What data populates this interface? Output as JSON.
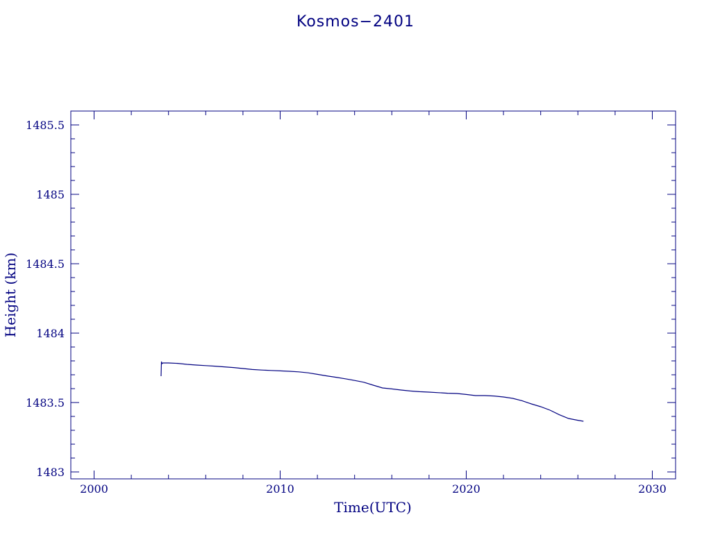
{
  "chart_data": {
    "type": "line",
    "title": "Kosmos−2401",
    "xlabel": "Time(UTC)",
    "ylabel": "Height (km)",
    "xlim": [
      1998.75,
      2031.25
    ],
    "ylim": [
      1482.95,
      1485.6
    ],
    "x_ticks": [
      2000,
      2010,
      2020,
      2030
    ],
    "x_tick_labels": [
      "2000",
      "2010",
      "2020",
      "2030"
    ],
    "y_ticks": [
      1483,
      1483.5,
      1484,
      1484.5,
      1485,
      1485.5
    ],
    "y_tick_labels": [
      "1483",
      "1483.5",
      "1484",
      "1484.5",
      "1485",
      "1485.5"
    ],
    "grid": false,
    "colors": {
      "axis": "#000080",
      "line": "#000080"
    },
    "series": [
      {
        "x": [
          2003.6,
          2003.62,
          2003.65,
          2003.7,
          2004.0,
          2004.5,
          2005.0,
          2005.5,
          2006.0,
          2006.5,
          2007.0,
          2007.5,
          2008.0,
          2008.5,
          2009.0,
          2009.5,
          2010.0,
          2010.5,
          2011.0,
          2011.5,
          2012.0,
          2012.5,
          2013.0,
          2013.5,
          2014.0,
          2014.5,
          2015.0,
          2015.5,
          2016.0,
          2016.5,
          2017.0,
          2017.5,
          2018.0,
          2018.5,
          2019.0,
          2019.5,
          2020.0,
          2020.5,
          2021.0,
          2021.5,
          2022.0,
          2022.5,
          2023.0,
          2023.5,
          2024.0,
          2024.5,
          2025.0,
          2025.5,
          2026.0,
          2026.3
        ],
        "values": [
          1483.69,
          1483.795,
          1483.78,
          1483.785,
          1483.785,
          1483.782,
          1483.775,
          1483.77,
          1483.766,
          1483.762,
          1483.757,
          1483.752,
          1483.745,
          1483.738,
          1483.734,
          1483.731,
          1483.728,
          1483.725,
          1483.721,
          1483.714,
          1483.703,
          1483.692,
          1483.682,
          1483.671,
          1483.659,
          1483.646,
          1483.625,
          1483.605,
          1483.598,
          1483.59,
          1483.583,
          1483.578,
          1483.575,
          1483.571,
          1483.567,
          1483.565,
          1483.558,
          1483.55,
          1483.55,
          1483.547,
          1483.54,
          1483.53,
          1483.513,
          1483.49,
          1483.47,
          1483.445,
          1483.412,
          1483.385,
          1483.372,
          1483.365
        ]
      }
    ]
  }
}
